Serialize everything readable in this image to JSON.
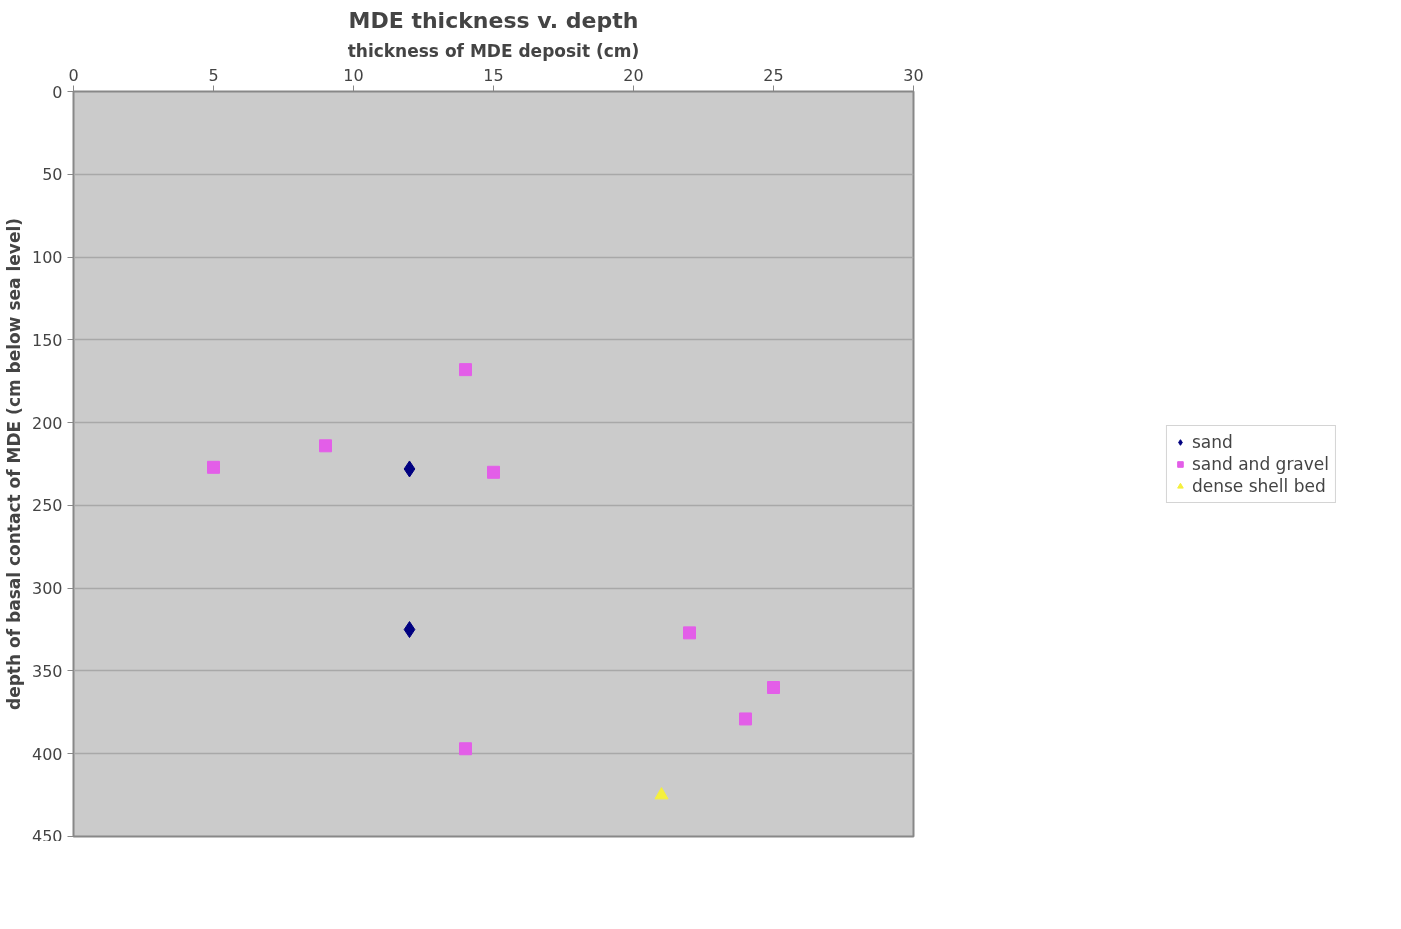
{
  "chart_data": {
    "type": "scatter",
    "title": "MDE thickness v. depth",
    "xlabel": "thickness of MDE deposit (cm)",
    "ylabel": "depth of basal contact of MDE (cm below sea level)",
    "xlim": [
      0,
      30
    ],
    "xticks": [
      0,
      5,
      10,
      15,
      20,
      25,
      30
    ],
    "ylim": [
      450,
      0
    ],
    "yticks": [
      0,
      50,
      100,
      150,
      200,
      250,
      300,
      350,
      400,
      450
    ],
    "grid": "y",
    "legend": "right",
    "series": [
      {
        "name": "sand",
        "color": "#000080",
        "marker": "diamond",
        "x": [
          12,
          12
        ],
        "values": [
          228,
          325
        ]
      },
      {
        "name": "sand and gravel",
        "color": "#e35ee8",
        "marker": "square",
        "x": [
          14,
          9,
          5,
          15,
          22,
          25,
          24,
          14
        ],
        "values": [
          168,
          214,
          227,
          230,
          327,
          360,
          379,
          397
        ]
      },
      {
        "name": "dense shell bed",
        "color": "#f5f03c",
        "marker": "triangle",
        "x": [
          21
        ],
        "values": [
          425
        ]
      }
    ]
  }
}
